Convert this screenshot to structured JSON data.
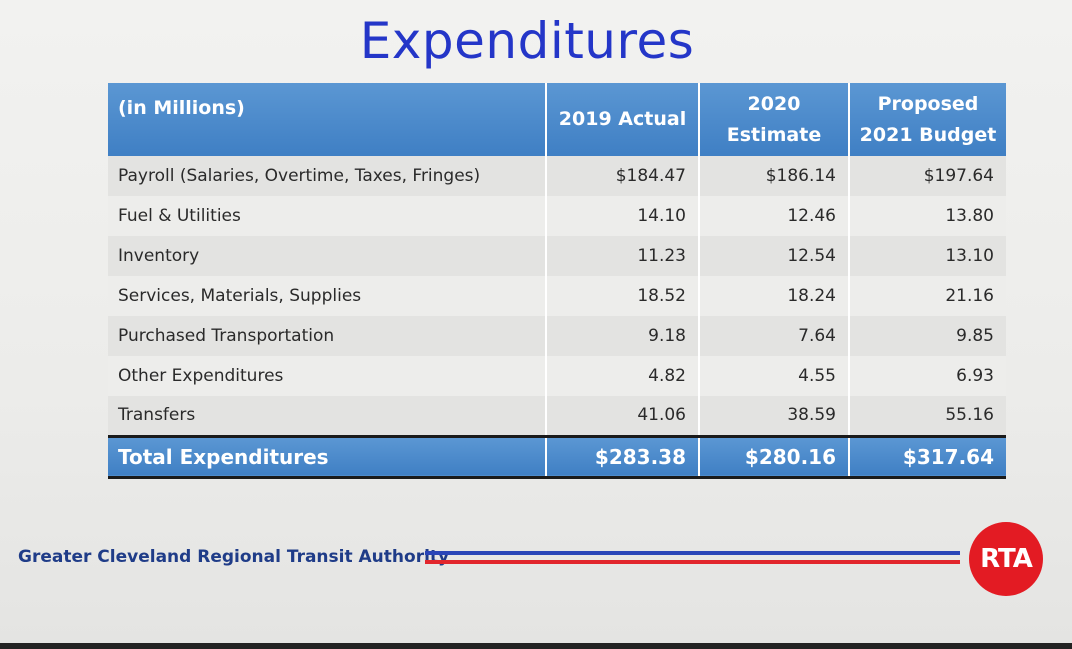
{
  "title": "Expenditures",
  "table": {
    "header": {
      "label": "(in Millions)",
      "col1": "2019 Actual",
      "col2_line1": "2020",
      "col2_line2": "Estimate",
      "col3_line1": "Proposed",
      "col3_line2": "2021 Budget"
    },
    "rows": [
      {
        "label": "Payroll (Salaries, Overtime, Taxes, Fringes)",
        "v2019": "$184.47",
        "v2020": "$186.14",
        "v2021": "$197.64"
      },
      {
        "label": "Fuel & Utilities",
        "v2019": "14.10",
        "v2020": "12.46",
        "v2021": "13.80"
      },
      {
        "label": "Inventory",
        "v2019": "11.23",
        "v2020": "12.54",
        "v2021": "13.10"
      },
      {
        "label": "Services, Materials, Supplies",
        "v2019": "18.52",
        "v2020": "18.24",
        "v2021": "21.16"
      },
      {
        "label": "Purchased Transportation",
        "v2019": "9.18",
        "v2020": "7.64",
        "v2021": "9.85"
      },
      {
        "label": "Other Expenditures",
        "v2019": "4.82",
        "v2020": "4.55",
        "v2021": "6.93"
      },
      {
        "label": "Transfers",
        "v2019": "41.06",
        "v2020": "38.59",
        "v2021": "55.16"
      }
    ],
    "total": {
      "label": "Total Expenditures",
      "v2019": "$283.38",
      "v2020": "$280.16",
      "v2021": "$317.64"
    }
  },
  "footer": {
    "organization": "Greater Cleveland Regional Transit Authority",
    "logo_text": "RTA"
  },
  "colors": {
    "title": "#2436c8",
    "header_blue": "#4a88cb",
    "stripe_blue": "#2a46b8",
    "stripe_red": "#e2262c",
    "logo_red": "#e31b23"
  }
}
